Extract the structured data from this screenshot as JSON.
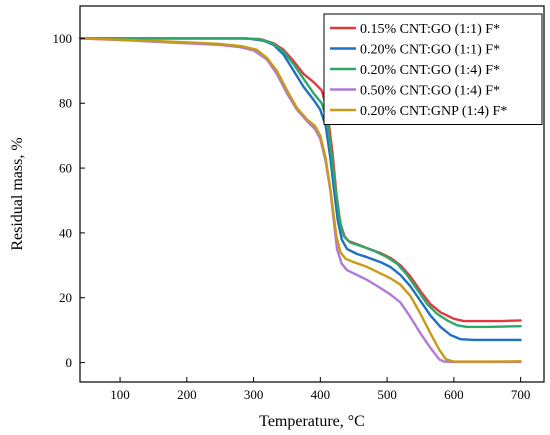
{
  "chart_data": {
    "type": "line",
    "xlabel": "Temperature, °C",
    "ylabel": "Residual mass, %",
    "xlim": [
      40,
      735
    ],
    "ylim": [
      -6,
      110
    ],
    "xticks": [
      100,
      200,
      300,
      400,
      500,
      600,
      700
    ],
    "yticks": [
      0,
      20,
      40,
      60,
      80,
      100
    ],
    "grid": false,
    "legend_position": "top-right",
    "series": [
      {
        "name": "0.15% CNT:GO (1:1) F*",
        "color": "#e0393d",
        "points": [
          [
            40,
            100
          ],
          [
            100,
            100
          ],
          [
            200,
            100
          ],
          [
            280,
            100
          ],
          [
            310,
            99.8
          ],
          [
            330,
            98.5
          ],
          [
            345,
            96.5
          ],
          [
            360,
            93
          ],
          [
            375,
            89
          ],
          [
            390,
            86.5
          ],
          [
            402,
            84
          ],
          [
            410,
            78
          ],
          [
            418,
            65
          ],
          [
            424,
            52
          ],
          [
            430,
            43
          ],
          [
            436,
            39
          ],
          [
            442,
            37.5
          ],
          [
            455,
            36.5
          ],
          [
            470,
            35.3
          ],
          [
            490,
            33.8
          ],
          [
            505,
            32.3
          ],
          [
            520,
            30
          ],
          [
            535,
            26.5
          ],
          [
            550,
            22
          ],
          [
            565,
            18
          ],
          [
            580,
            15.5
          ],
          [
            600,
            13.5
          ],
          [
            615,
            12.8
          ],
          [
            640,
            12.8
          ],
          [
            670,
            12.8
          ],
          [
            700,
            13
          ]
        ]
      },
      {
        "name": "0.20% CNT:GO (1:1) F*",
        "color": "#1f6fc5",
        "points": [
          [
            40,
            100
          ],
          [
            100,
            100
          ],
          [
            200,
            100
          ],
          [
            290,
            100
          ],
          [
            315,
            99.3
          ],
          [
            330,
            98
          ],
          [
            345,
            95
          ],
          [
            360,
            90
          ],
          [
            375,
            85
          ],
          [
            390,
            81
          ],
          [
            400,
            78
          ],
          [
            408,
            73
          ],
          [
            415,
            63
          ],
          [
            420,
            54
          ],
          [
            426,
            44
          ],
          [
            432,
            38
          ],
          [
            440,
            35
          ],
          [
            455,
            33.5
          ],
          [
            470,
            32.5
          ],
          [
            490,
            31
          ],
          [
            505,
            29.5
          ],
          [
            520,
            27
          ],
          [
            535,
            23.5
          ],
          [
            550,
            19
          ],
          [
            565,
            14.5
          ],
          [
            580,
            11
          ],
          [
            595,
            8.5
          ],
          [
            610,
            7.2
          ],
          [
            630,
            7
          ],
          [
            660,
            7
          ],
          [
            700,
            7
          ]
        ]
      },
      {
        "name": "0.20% CNT:GO (1:4) F*",
        "color": "#2ca86a",
        "points": [
          [
            40,
            100
          ],
          [
            100,
            100
          ],
          [
            200,
            100
          ],
          [
            290,
            100
          ],
          [
            315,
            99.5
          ],
          [
            330,
            98.2
          ],
          [
            345,
            96
          ],
          [
            360,
            92
          ],
          [
            375,
            87.5
          ],
          [
            390,
            83
          ],
          [
            402,
            80
          ],
          [
            410,
            75
          ],
          [
            417,
            64
          ],
          [
            423,
            53
          ],
          [
            429,
            44
          ],
          [
            435,
            39
          ],
          [
            445,
            37
          ],
          [
            460,
            36
          ],
          [
            480,
            34.5
          ],
          [
            500,
            32.5
          ],
          [
            515,
            30.5
          ],
          [
            530,
            27
          ],
          [
            545,
            22.5
          ],
          [
            560,
            18
          ],
          [
            575,
            15
          ],
          [
            590,
            13
          ],
          [
            605,
            11.5
          ],
          [
            620,
            11
          ],
          [
            650,
            11
          ],
          [
            700,
            11.2
          ]
        ]
      },
      {
        "name": "0.50% CNT:GO (1:4) F*",
        "color": "#b17ad8",
        "points": [
          [
            40,
            100
          ],
          [
            100,
            99.5
          ],
          [
            150,
            99
          ],
          [
            200,
            98.5
          ],
          [
            250,
            98
          ],
          [
            280,
            97.3
          ],
          [
            300,
            96.3
          ],
          [
            320,
            93.5
          ],
          [
            335,
            89
          ],
          [
            350,
            83
          ],
          [
            365,
            78
          ],
          [
            380,
            74.5
          ],
          [
            392,
            72
          ],
          [
            400,
            69
          ],
          [
            408,
            62
          ],
          [
            415,
            53
          ],
          [
            420,
            44
          ],
          [
            425,
            35
          ],
          [
            432,
            30.5
          ],
          [
            440,
            28.5
          ],
          [
            455,
            27
          ],
          [
            470,
            25.5
          ],
          [
            490,
            23
          ],
          [
            505,
            21
          ],
          [
            520,
            18.5
          ],
          [
            535,
            14
          ],
          [
            550,
            9
          ],
          [
            565,
            4.5
          ],
          [
            578,
            1
          ],
          [
            585,
            0.3
          ],
          [
            600,
            0.2
          ],
          [
            650,
            0.2
          ],
          [
            700,
            0.2
          ]
        ]
      },
      {
        "name": "0.20% CNT:GNP (1:4) F*",
        "color": "#c99a16",
        "points": [
          [
            40,
            100
          ],
          [
            100,
            99.6
          ],
          [
            150,
            99.2
          ],
          [
            200,
            98.8
          ],
          [
            250,
            98.3
          ],
          [
            285,
            97.5
          ],
          [
            305,
            96.5
          ],
          [
            320,
            94
          ],
          [
            335,
            90
          ],
          [
            350,
            84
          ],
          [
            365,
            78.5
          ],
          [
            380,
            75
          ],
          [
            392,
            73
          ],
          [
            400,
            70
          ],
          [
            408,
            63
          ],
          [
            414,
            55
          ],
          [
            419,
            47
          ],
          [
            424,
            39
          ],
          [
            430,
            34
          ],
          [
            438,
            32
          ],
          [
            450,
            31
          ],
          [
            470,
            29.5
          ],
          [
            490,
            27.5
          ],
          [
            505,
            26
          ],
          [
            520,
            24
          ],
          [
            535,
            20.5
          ],
          [
            550,
            15
          ],
          [
            565,
            9
          ],
          [
            578,
            4
          ],
          [
            588,
            1
          ],
          [
            600,
            0.3
          ],
          [
            650,
            0.3
          ],
          [
            700,
            0.4
          ]
        ]
      }
    ]
  }
}
